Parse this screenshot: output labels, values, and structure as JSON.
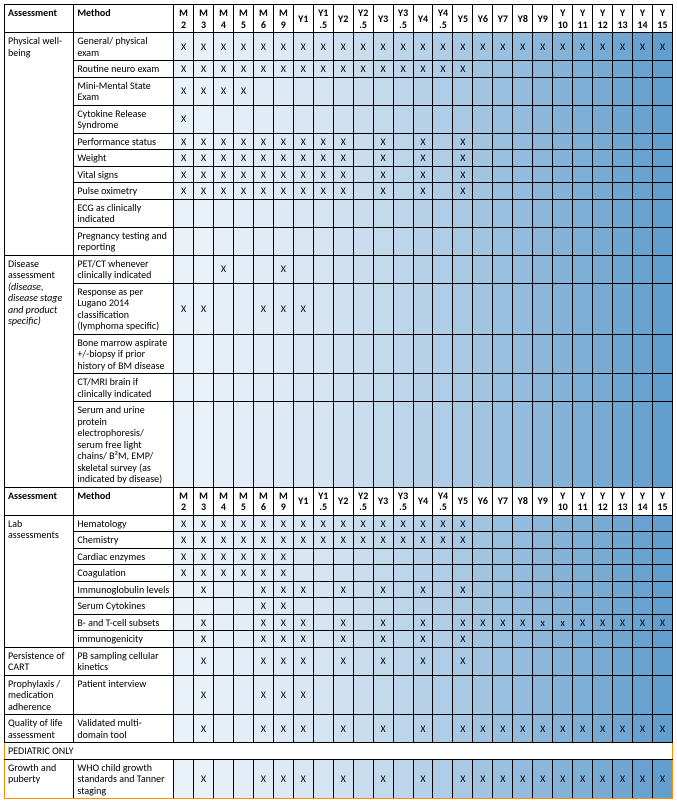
{
  "headers": {
    "assessment": "Assessment",
    "method": "Method"
  },
  "timepoints": [
    "M 2",
    "M 3",
    "M 4",
    "M 5",
    "M 6",
    "M 9",
    "Y1",
    "Y1 .5",
    "Y2",
    "Y2 .5",
    "Y3",
    "Y3 .5",
    "Y4",
    "Y4 .5",
    "Y5",
    "Y6",
    "Y7",
    "Y8",
    "Y9",
    "Y 10",
    "Y 11",
    "Y 12",
    "Y 13",
    "Y 14",
    "Y 15"
  ],
  "gradient_colors": [
    "#e9f1f9",
    "#e9f1f9",
    "#e6eff8",
    "#e3edf7",
    "#e0ebf6",
    "#ddeaf5",
    "#d9e7f4",
    "#d4e4f2",
    "#cfe0f0",
    "#c9ddee",
    "#c3d9ec",
    "#bdd5ea",
    "#b6d1e8",
    "#afcde6",
    "#a8c8e3",
    "#a1c4e1",
    "#9ac0df",
    "#93bbdd",
    "#8cb7db",
    "#85b3d8",
    "#7eafd6",
    "#77abd4",
    "#70a6d2",
    "#69a2d0",
    "#629ece"
  ],
  "x_glyph": "X",
  "x_lower": "x",
  "pediatric_label": "PEDIATRIC ONLY",
  "sections": [
    {
      "assessment": "Physical well-being",
      "rows": [
        {
          "method": "General/ physical exam",
          "marks": [
            1,
            1,
            1,
            1,
            1,
            1,
            1,
            1,
            1,
            1,
            1,
            1,
            1,
            1,
            1,
            1,
            1,
            1,
            1,
            1,
            1,
            1,
            1,
            1,
            1
          ]
        },
        {
          "method": "Routine neuro exam",
          "marks": [
            1,
            1,
            1,
            1,
            1,
            1,
            1,
            1,
            1,
            1,
            1,
            1,
            1,
            1,
            1,
            0,
            0,
            0,
            0,
            0,
            0,
            0,
            0,
            0,
            0
          ]
        },
        {
          "method": "Mini-Mental State Exam",
          "marks": [
            1,
            1,
            1,
            1,
            0,
            0,
            0,
            0,
            0,
            0,
            0,
            0,
            0,
            0,
            0,
            0,
            0,
            0,
            0,
            0,
            0,
            0,
            0,
            0,
            0
          ]
        },
        {
          "method": "Cytokine Release Syndrome",
          "marks": [
            1,
            0,
            0,
            0,
            0,
            0,
            0,
            0,
            0,
            0,
            0,
            0,
            0,
            0,
            0,
            0,
            0,
            0,
            0,
            0,
            0,
            0,
            0,
            0,
            0
          ]
        },
        {
          "method": "Performance status",
          "marks": [
            1,
            1,
            1,
            1,
            1,
            1,
            1,
            1,
            1,
            0,
            1,
            0,
            1,
            0,
            1,
            0,
            0,
            0,
            0,
            0,
            0,
            0,
            0,
            0,
            0
          ]
        },
        {
          "method": "Weight",
          "marks": [
            1,
            1,
            1,
            1,
            1,
            1,
            1,
            1,
            1,
            0,
            1,
            0,
            1,
            0,
            1,
            0,
            0,
            0,
            0,
            0,
            0,
            0,
            0,
            0,
            0
          ]
        },
        {
          "method": "Vital signs",
          "marks": [
            1,
            1,
            1,
            1,
            1,
            1,
            1,
            1,
            1,
            0,
            1,
            0,
            1,
            0,
            1,
            0,
            0,
            0,
            0,
            0,
            0,
            0,
            0,
            0,
            0
          ]
        },
        {
          "method": "Pulse oximetry",
          "marks": [
            1,
            1,
            1,
            1,
            1,
            1,
            1,
            1,
            1,
            0,
            1,
            0,
            1,
            0,
            1,
            0,
            0,
            0,
            0,
            0,
            0,
            0,
            0,
            0,
            0
          ]
        },
        {
          "method": "ECG as clinically indicated",
          "marks": [
            0,
            0,
            0,
            0,
            0,
            0,
            0,
            0,
            0,
            0,
            0,
            0,
            0,
            0,
            0,
            0,
            0,
            0,
            0,
            0,
            0,
            0,
            0,
            0,
            0
          ]
        },
        {
          "method": "Pregnancy testing and reporting",
          "marks": [
            0,
            0,
            0,
            0,
            0,
            0,
            0,
            0,
            0,
            0,
            0,
            0,
            0,
            0,
            0,
            0,
            0,
            0,
            0,
            0,
            0,
            0,
            0,
            0,
            0
          ]
        }
      ]
    },
    {
      "assessment": "Disease assessment",
      "assessment_italic": "(disease, disease stage and product specific)",
      "rows": [
        {
          "method": "PET/CT whenever clinically indicated",
          "marks": [
            0,
            0,
            1,
            0,
            0,
            1,
            0,
            0,
            0,
            0,
            0,
            0,
            0,
            0,
            0,
            0,
            0,
            0,
            0,
            0,
            0,
            0,
            0,
            0,
            0
          ]
        },
        {
          "method": "Response as per Lugano 2014 classification (lymphoma specific)",
          "marks": [
            1,
            1,
            0,
            0,
            1,
            1,
            1,
            0,
            0,
            0,
            0,
            0,
            0,
            0,
            0,
            0,
            0,
            0,
            0,
            0,
            0,
            0,
            0,
            0,
            0
          ]
        },
        {
          "method": "Bone marrow aspirate +/-biopsy if prior history of BM disease",
          "marks": [
            0,
            0,
            0,
            0,
            0,
            0,
            0,
            0,
            0,
            0,
            0,
            0,
            0,
            0,
            0,
            0,
            0,
            0,
            0,
            0,
            0,
            0,
            0,
            0,
            0
          ]
        },
        {
          "method": "CT/MRI brain if clinically indicated",
          "marks": [
            0,
            0,
            0,
            0,
            0,
            0,
            0,
            0,
            0,
            0,
            0,
            0,
            0,
            0,
            0,
            0,
            0,
            0,
            0,
            0,
            0,
            0,
            0,
            0,
            0
          ]
        },
        {
          "method": "Serum and urine protein electrophoresis/ serum free light chains/ B²M, EMP/ skeletal survey (as indicated by disease)",
          "marks": [
            0,
            0,
            0,
            0,
            0,
            0,
            0,
            0,
            0,
            0,
            0,
            0,
            0,
            0,
            0,
            0,
            0,
            0,
            0,
            0,
            0,
            0,
            0,
            0,
            0
          ]
        }
      ]
    }
  ],
  "sections2": [
    {
      "assessment": "Lab assessments",
      "rows": [
        {
          "method": "Hematology",
          "marks": [
            1,
            1,
            1,
            1,
            1,
            1,
            1,
            1,
            1,
            1,
            1,
            1,
            1,
            1,
            1,
            0,
            0,
            0,
            0,
            0,
            0,
            0,
            0,
            0,
            0
          ]
        },
        {
          "method": "Chemistry",
          "marks": [
            1,
            1,
            1,
            1,
            1,
            1,
            1,
            1,
            1,
            1,
            1,
            1,
            1,
            1,
            1,
            0,
            0,
            0,
            0,
            0,
            0,
            0,
            0,
            0,
            0
          ]
        },
        {
          "method": "Cardiac enzymes",
          "marks": [
            1,
            1,
            1,
            1,
            1,
            1,
            0,
            0,
            0,
            0,
            0,
            0,
            0,
            0,
            0,
            0,
            0,
            0,
            0,
            0,
            0,
            0,
            0,
            0,
            0
          ]
        },
        {
          "method": "Coagulation",
          "marks": [
            1,
            1,
            1,
            1,
            1,
            1,
            0,
            0,
            0,
            0,
            0,
            0,
            0,
            0,
            0,
            0,
            0,
            0,
            0,
            0,
            0,
            0,
            0,
            0,
            0
          ]
        },
        {
          "method": "Immunoglobulin levels",
          "marks": [
            0,
            1,
            0,
            0,
            1,
            1,
            1,
            0,
            1,
            0,
            1,
            0,
            1,
            0,
            1,
            0,
            0,
            0,
            0,
            0,
            0,
            0,
            0,
            0,
            0
          ]
        },
        {
          "method": "Serum Cytokines",
          "marks": [
            0,
            0,
            0,
            0,
            1,
            1,
            0,
            0,
            0,
            0,
            0,
            0,
            0,
            0,
            0,
            0,
            0,
            0,
            0,
            0,
            0,
            0,
            0,
            0,
            0
          ]
        },
        {
          "method": "B- and T-cell subsets",
          "marks": [
            0,
            1,
            0,
            0,
            1,
            1,
            1,
            0,
            1,
            0,
            1,
            0,
            1,
            0,
            1,
            1,
            1,
            1,
            2,
            2,
            1,
            1,
            1,
            1,
            1
          ]
        },
        {
          "method": "immunogenicity",
          "marks": [
            0,
            1,
            0,
            0,
            1,
            1,
            1,
            0,
            1,
            0,
            1,
            0,
            1,
            0,
            1,
            0,
            0,
            0,
            0,
            0,
            0,
            0,
            0,
            0,
            0
          ]
        }
      ]
    },
    {
      "assessment": "Persistence of CART",
      "rows": [
        {
          "method": "PB sampling cellular kinetics",
          "marks": [
            0,
            1,
            0,
            0,
            1,
            1,
            1,
            0,
            1,
            0,
            1,
            0,
            1,
            0,
            1,
            0,
            0,
            0,
            0,
            0,
            0,
            0,
            0,
            0,
            0
          ]
        }
      ]
    },
    {
      "assessment": "Prophylaxis / medication adherence",
      "rows": [
        {
          "method": "Patient interview",
          "marks": [
            0,
            1,
            0,
            0,
            1,
            1,
            1,
            0,
            0,
            0,
            0,
            0,
            0,
            0,
            0,
            0,
            0,
            0,
            0,
            0,
            0,
            0,
            0,
            0,
            0
          ]
        }
      ]
    },
    {
      "assessment": "Quality of life assessment",
      "rows": [
        {
          "method": "Validated multi-domain tool",
          "marks": [
            0,
            1,
            0,
            0,
            1,
            1,
            1,
            0,
            1,
            0,
            1,
            0,
            1,
            0,
            1,
            1,
            1,
            1,
            1,
            1,
            1,
            1,
            1,
            1,
            1
          ]
        }
      ]
    }
  ],
  "pediatric_section": {
    "assessment": "Growth and puberty",
    "rows": [
      {
        "method": "WHO child growth standards and Tanner staging",
        "marks": [
          0,
          1,
          0,
          0,
          1,
          1,
          1,
          0,
          1,
          0,
          1,
          0,
          1,
          0,
          1,
          1,
          1,
          1,
          1,
          1,
          1,
          1,
          1,
          1,
          1
        ]
      }
    ]
  }
}
